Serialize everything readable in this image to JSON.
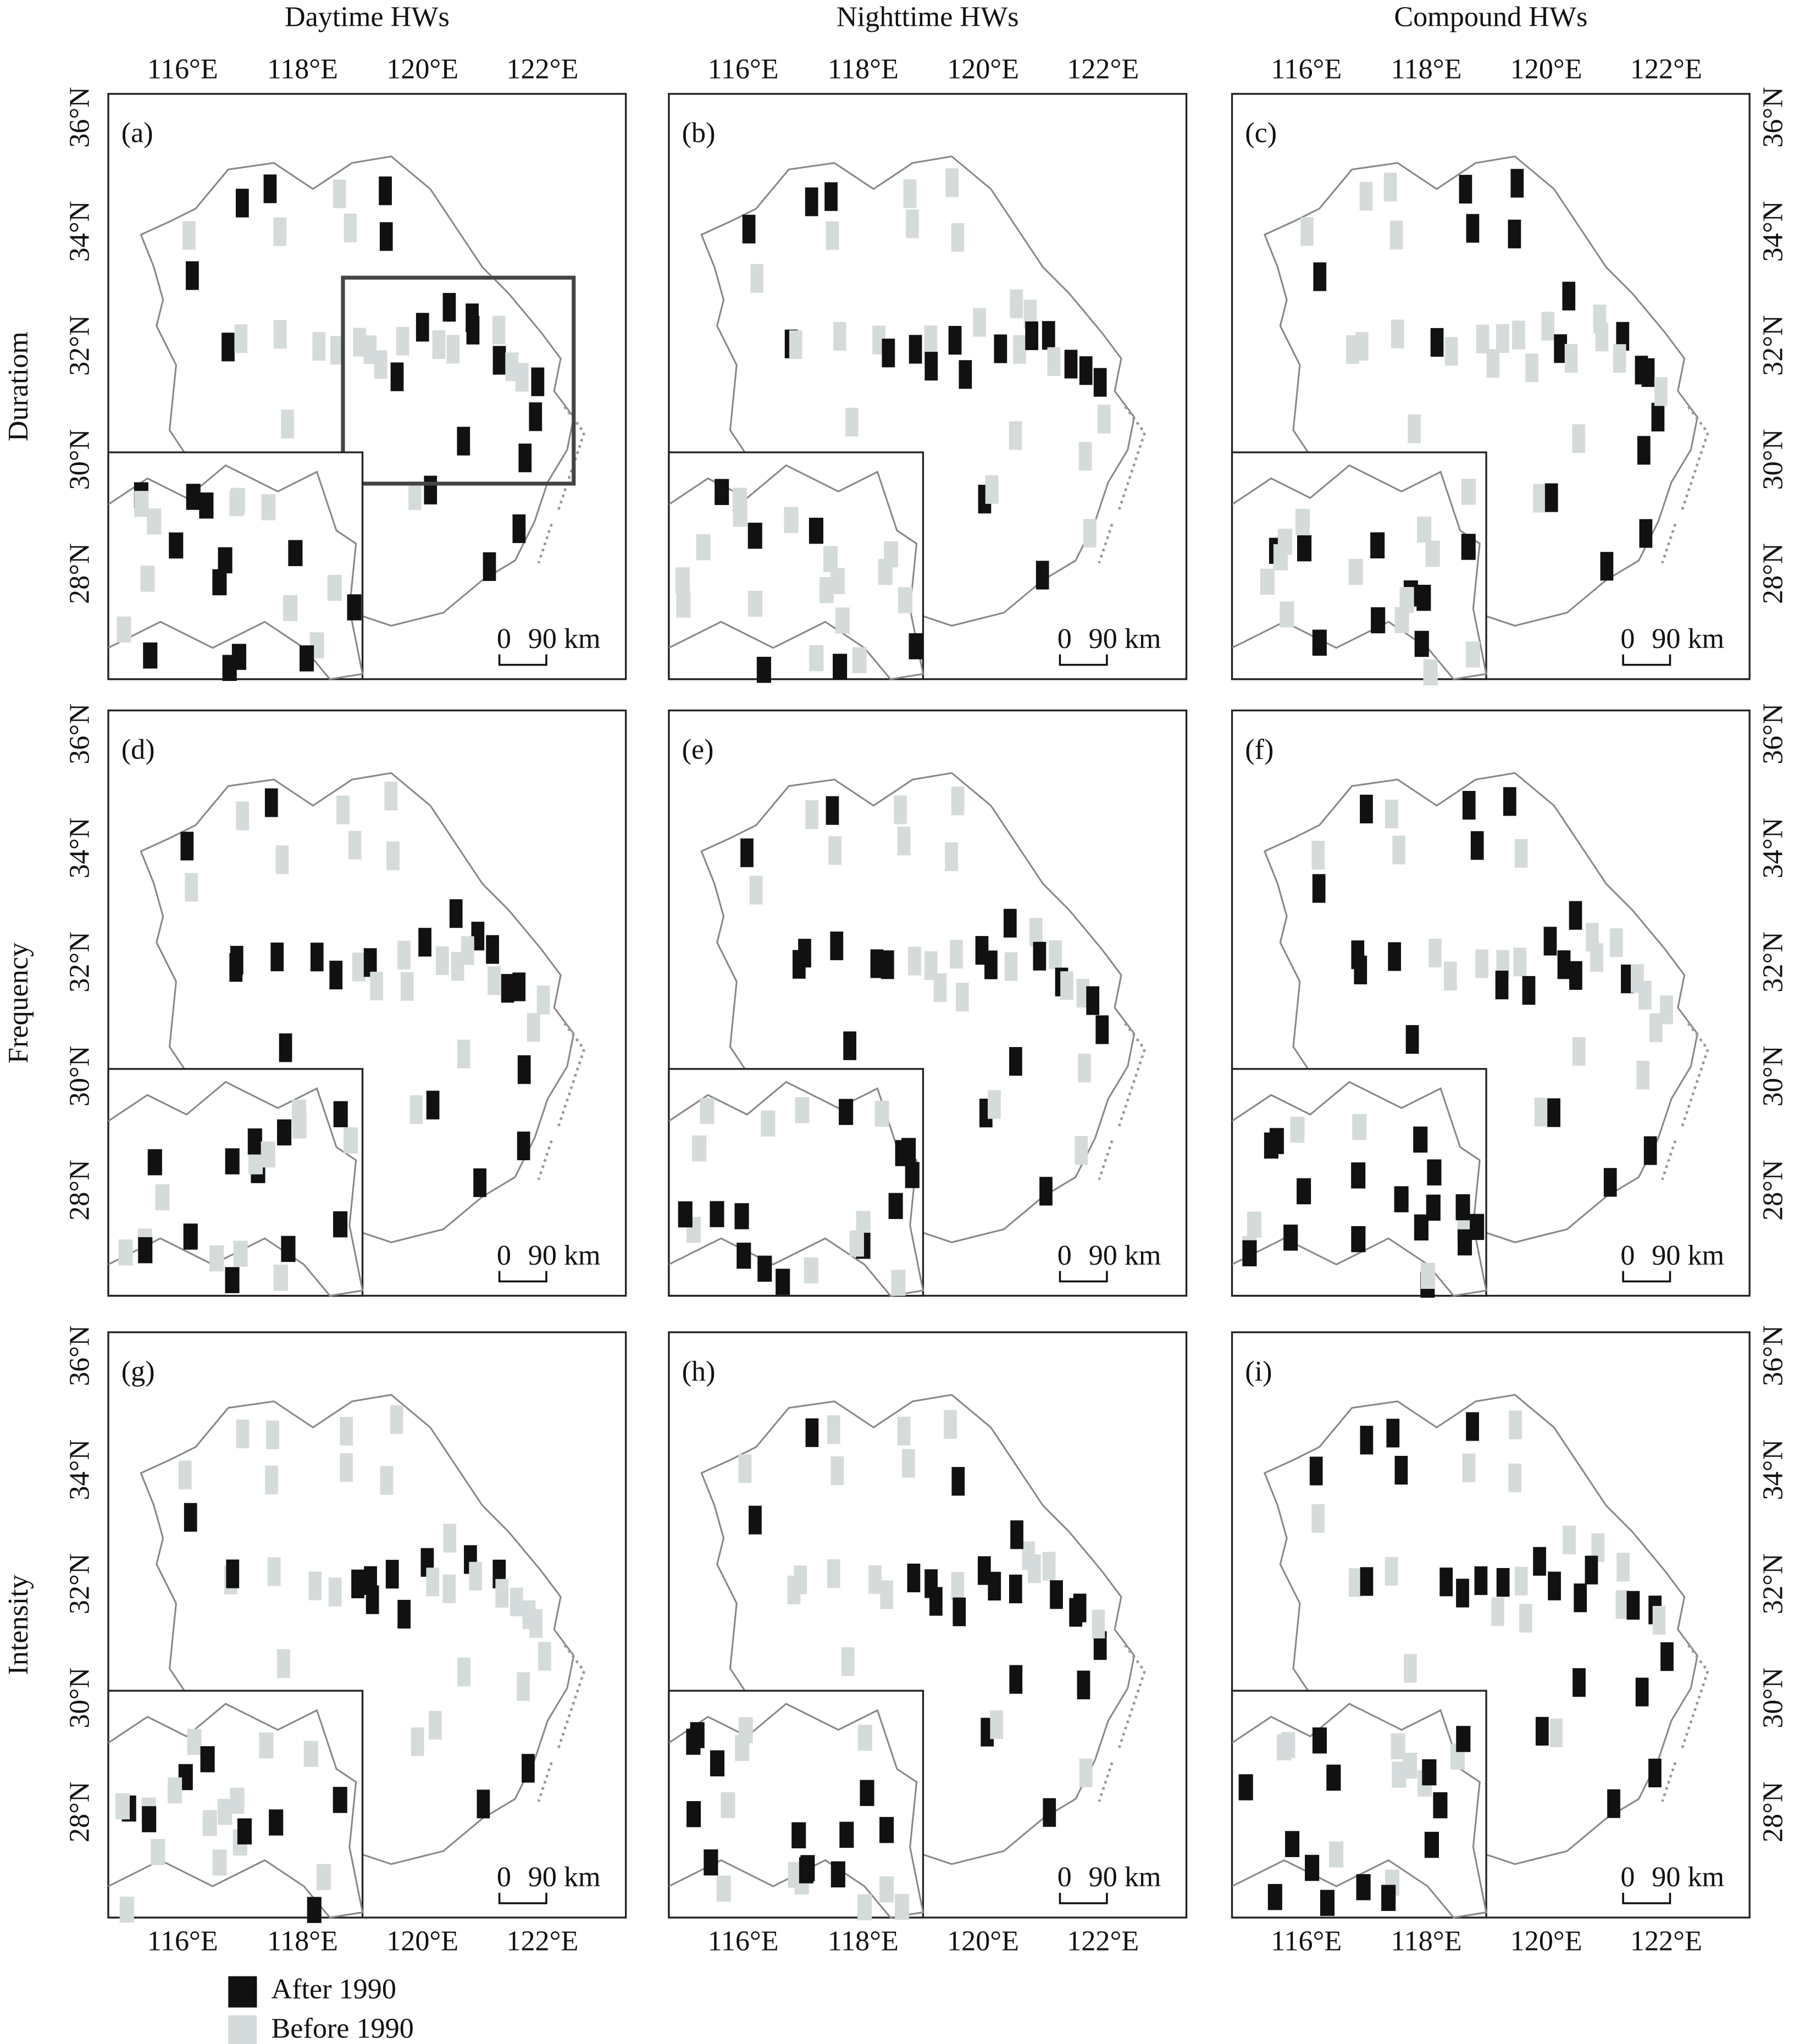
{
  "columns": [
    "Daytime HWs",
    "Nighttime HWs",
    "Compound HWs"
  ],
  "rows": [
    "Duratiom",
    "Frequency",
    "Intensity"
  ],
  "panels": [
    "(a)",
    "(b)",
    "(c)",
    "(d)",
    "(e)",
    "(f)",
    "(g)",
    "(h)",
    "(i)"
  ],
  "lon_ticks": [
    "116°E",
    "118°E",
    "120°E",
    "122°E"
  ],
  "lat_ticks": [
    "36°N",
    "34°N",
    "32°N",
    "30°N",
    "28°N"
  ],
  "scale_bar": {
    "zero": "0",
    "distance": "90 km"
  },
  "legend": [
    "After 1990",
    "Before 1990"
  ]
}
